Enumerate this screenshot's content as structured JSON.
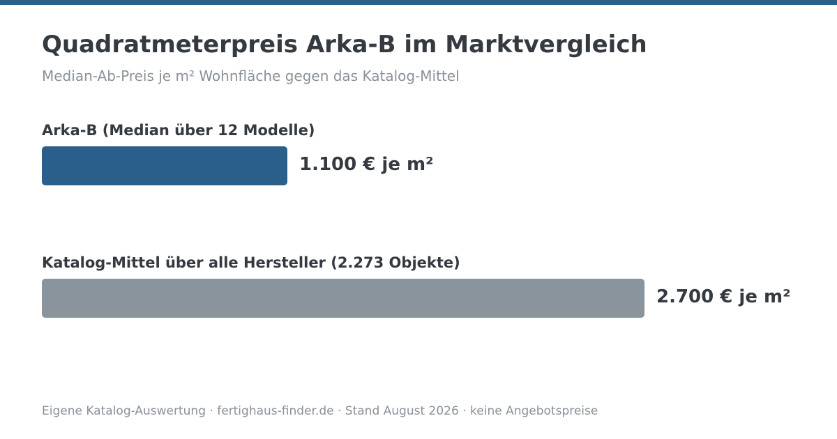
{
  "colors": {
    "accent": "#2a5f8c",
    "bar_primary": "#2a5f8c",
    "bar_secondary": "#8a949c"
  },
  "chart_data": {
    "type": "bar",
    "orientation": "horizontal",
    "title": "Quadratmeterpreis Arka-B im Marktvergleich",
    "subtitle": "Median-Ab-Preis je m² Wohnfläche gegen das Katalog-Mittel",
    "categories": [
      "Arka-B (Median über 12 Modelle)",
      "Katalog-Mittel über alle Hersteller (2.273 Objekte)"
    ],
    "values": [
      1100,
      2700
    ],
    "value_labels": [
      "1.100 € je m²",
      "2.700 € je m²"
    ],
    "unit": "€ je m²",
    "bar_colors": [
      "#2a5f8c",
      "#8a949c"
    ],
    "xlim": [
      0,
      2700
    ],
    "grid": false,
    "legend": "none"
  },
  "footer": {
    "text": "Eigene Katalog-Auswertung · fertighaus-finder.de · Stand August 2026 · keine Angebotspreise"
  }
}
